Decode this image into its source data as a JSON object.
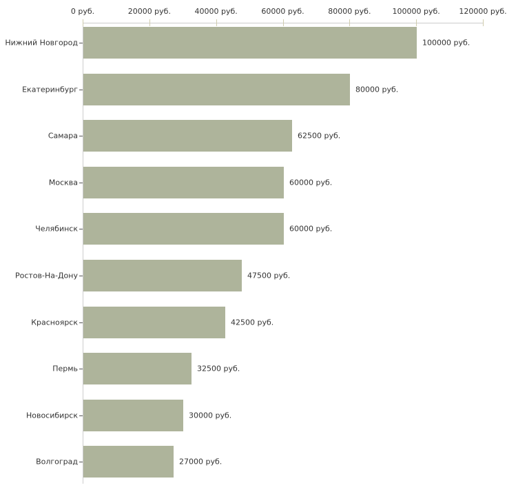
{
  "chart_data": {
    "type": "bar",
    "orientation": "horizontal",
    "title": "",
    "categories": [
      "Нижний Новгород",
      "Екатеринбург",
      "Самара",
      "Москва",
      "Челябинск",
      "Ростов-На-Дону",
      "Красноярск",
      "Пермь",
      "Новосибирск",
      "Волгоград"
    ],
    "values": [
      100000,
      80000,
      62500,
      60000,
      60000,
      47500,
      42500,
      32500,
      30000,
      27000
    ],
    "value_labels": [
      "100000 руб.",
      "80000 руб.",
      "62500 руб.",
      "60000 руб.",
      "60000 руб.",
      "47500 руб.",
      "42500 руб.",
      "32500 руб.",
      "30000 руб.",
      "27000 руб."
    ],
    "x_axis": {
      "position": "top",
      "min": 0,
      "max": 120000,
      "tick_values": [
        0,
        20000,
        40000,
        60000,
        80000,
        100000,
        120000
      ],
      "tick_labels": [
        "0 руб.",
        "20000 руб.",
        "40000 руб.",
        "60000 руб.",
        "80000 руб.",
        "100000 руб.",
        "120000 руб."
      ]
    },
    "unit_suffix": " руб.",
    "grid": false,
    "legend": false,
    "colors": {
      "bar": "#aeb49b",
      "axis": "#cccccc",
      "x_tick": "#cfccae",
      "category_tick": "#545454",
      "text": "#333333",
      "background": "#ffffff"
    }
  }
}
